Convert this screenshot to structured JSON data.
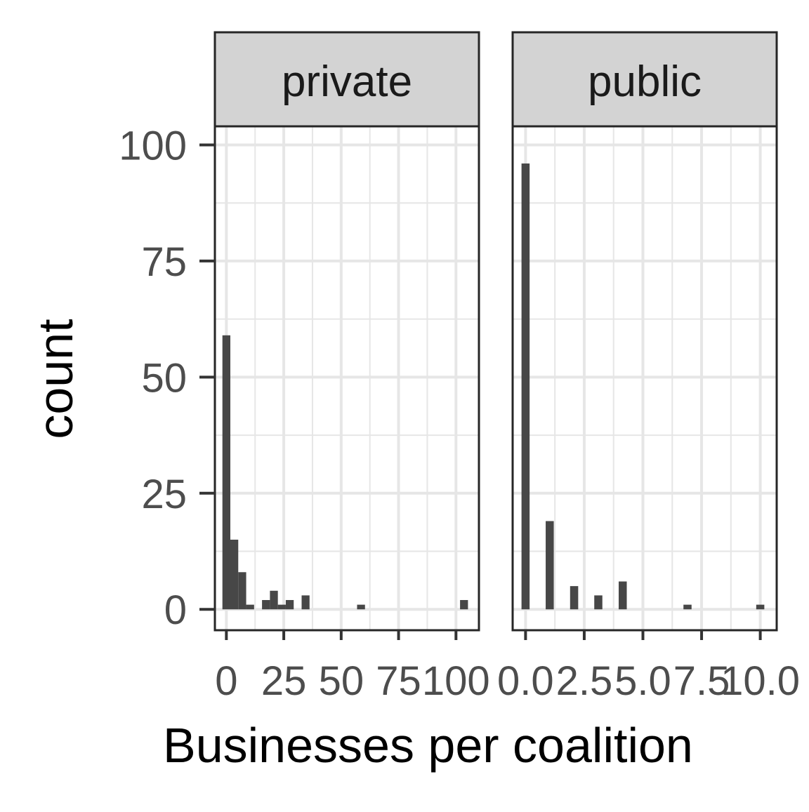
{
  "chart_data": {
    "type": "bar",
    "subtype": "faceted-histogram",
    "xlabel": "Businesses per coalition",
    "ylabel": "count",
    "y_ticks": [
      0,
      25,
      50,
      75,
      100
    ],
    "ylim": [
      -4.5,
      104
    ],
    "grid": true,
    "colors": {
      "bar": "#474747",
      "strip_fill": "#d3d3d3",
      "grid": "#e6e6e6",
      "border": "#262626"
    },
    "facets": [
      {
        "label": "private",
        "xlim": [
          -5,
          110
        ],
        "x_ticks": [
          0,
          25,
          50,
          75,
          100
        ],
        "x_tick_labels": [
          "0",
          "25",
          "50",
          "75",
          "100"
        ],
        "bin_width": 3.45,
        "bins": [
          {
            "x": 0,
            "count": 59
          },
          {
            "x": 3.45,
            "count": 15
          },
          {
            "x": 6.9,
            "count": 8
          },
          {
            "x": 10.35,
            "count": 1
          },
          {
            "x": 17.25,
            "count": 2
          },
          {
            "x": 20.7,
            "count": 4
          },
          {
            "x": 24.15,
            "count": 1
          },
          {
            "x": 27.6,
            "count": 2
          },
          {
            "x": 34.5,
            "count": 3
          },
          {
            "x": 58.65,
            "count": 1
          },
          {
            "x": 103.5,
            "count": 2
          }
        ]
      },
      {
        "label": "public",
        "xlim": [
          -0.55,
          10.7
        ],
        "x_ticks": [
          0,
          2.5,
          5,
          7.5,
          10
        ],
        "x_tick_labels": [
          "0.0",
          "2.5",
          "5.0",
          "7.5",
          "10.0"
        ],
        "bin_width": 0.345,
        "bins": [
          {
            "x": 0,
            "count": 96
          },
          {
            "x": 1.03,
            "count": 19
          },
          {
            "x": 2.07,
            "count": 5
          },
          {
            "x": 3.1,
            "count": 3
          },
          {
            "x": 4.14,
            "count": 6
          },
          {
            "x": 6.9,
            "count": 1
          },
          {
            "x": 10.0,
            "count": 1
          }
        ]
      }
    ]
  }
}
